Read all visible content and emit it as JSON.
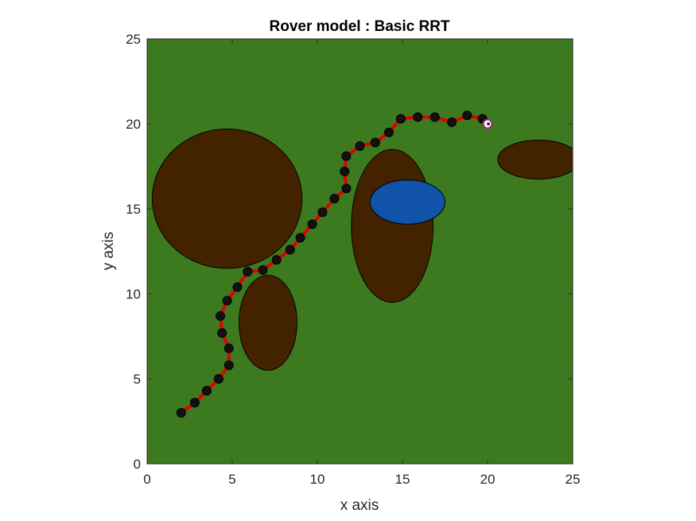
{
  "chart_data": {
    "type": "scatter",
    "title": "Rover model : Basic RRT",
    "xlabel": "x axis",
    "ylabel": "y axis",
    "xlim": [
      0,
      25
    ],
    "ylim": [
      0,
      25
    ],
    "xticks": [
      0,
      5,
      10,
      15,
      20,
      25
    ],
    "yticks": [
      0,
      5,
      10,
      15,
      20,
      25
    ],
    "grid": false,
    "colors": {
      "background": "#3d7a1f",
      "obstacle": "#432200",
      "water": "#1053a8",
      "path": "#e00000",
      "node": "#111111",
      "goal": "#a0207a"
    },
    "obstacles": [
      {
        "kind": "dirt",
        "cx": 4.7,
        "cy": 15.6,
        "rx": 4.4,
        "ry": 4.1
      },
      {
        "kind": "dirt",
        "cx": 7.1,
        "cy": 8.3,
        "rx": 1.7,
        "ry": 2.8
      },
      {
        "kind": "dirt",
        "cx": 14.4,
        "cy": 14.0,
        "rx": 2.4,
        "ry": 4.5
      },
      {
        "kind": "water",
        "cx": 15.3,
        "cy": 15.4,
        "rx": 2.2,
        "ry": 1.3
      },
      {
        "kind": "dirt",
        "cx": 23.0,
        "cy": 17.9,
        "rx": 2.4,
        "ry": 1.15
      }
    ],
    "path": {
      "x": [
        2.0,
        2.8,
        3.5,
        4.2,
        4.8,
        4.8,
        4.4,
        4.3,
        4.7,
        5.3,
        5.9,
        6.8,
        7.6,
        8.4,
        9.0,
        9.7,
        10.3,
        11.0,
        11.7,
        11.6,
        11.7,
        12.5,
        13.4,
        14.2,
        14.9,
        15.9,
        16.9,
        17.9,
        18.8,
        19.7,
        20.0
      ],
      "y": [
        3.0,
        3.6,
        4.3,
        5.0,
        5.8,
        6.8,
        7.7,
        8.7,
        9.6,
        10.4,
        11.3,
        11.4,
        12.0,
        12.6,
        13.3,
        14.1,
        14.8,
        15.6,
        16.2,
        17.2,
        18.1,
        18.7,
        18.9,
        19.5,
        20.3,
        20.4,
        20.4,
        20.1,
        20.5,
        20.3,
        20.0
      ]
    },
    "goal": {
      "x": 20.0,
      "y": 20.0
    }
  }
}
